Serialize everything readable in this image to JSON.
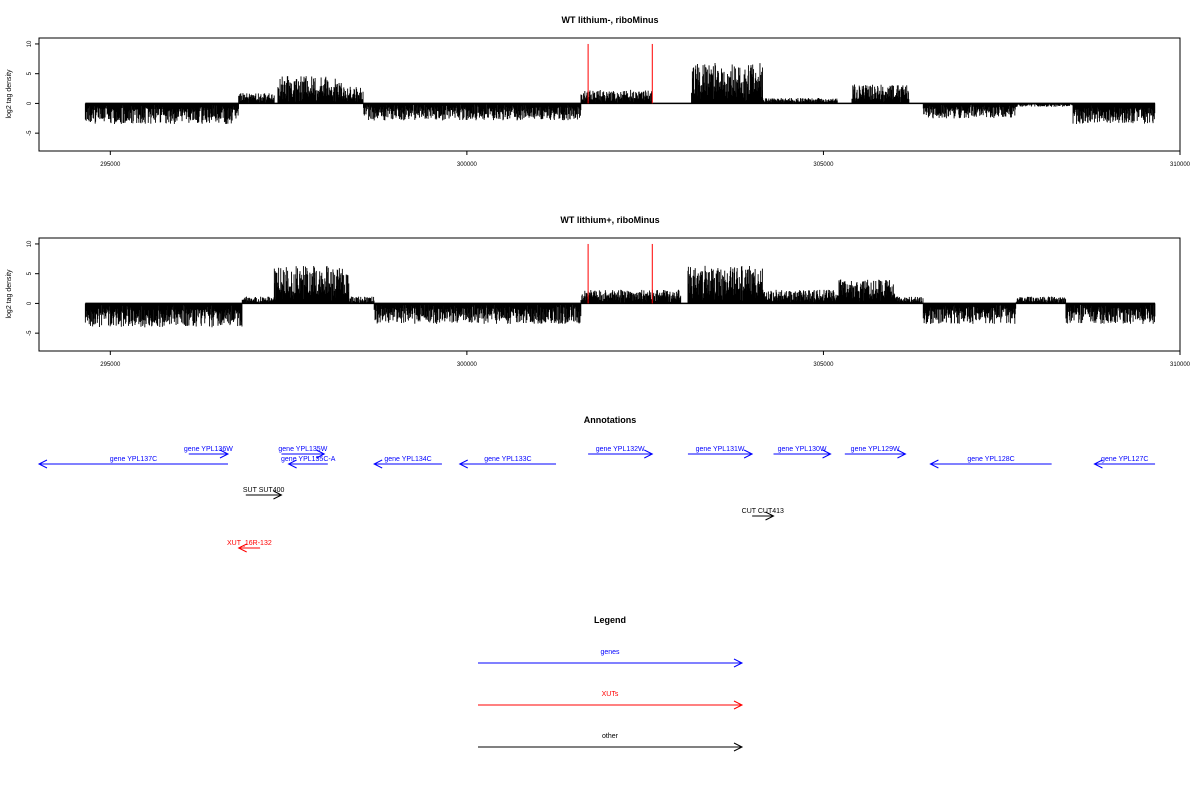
{
  "chart_data": [
    {
      "type": "bar",
      "title": "WT lithium-, riboMinus",
      "ylabel": "log2 tag density",
      "xlim": [
        294000,
        310000
      ],
      "ylim": [
        -8,
        11
      ],
      "x_ticks": [
        295000,
        300000,
        305000,
        310000
      ],
      "y_ticks": [
        -5,
        0,
        5,
        10
      ],
      "bins": [
        {
          "from": 294650,
          "to": 296800,
          "value": -3.0
        },
        {
          "from": 296800,
          "to": 297300,
          "value": 1.5
        },
        {
          "from": 297350,
          "to": 298250,
          "value": 4.0
        },
        {
          "from": 298250,
          "to": 298550,
          "value": 2.5
        },
        {
          "from": 298550,
          "to": 301600,
          "value": -2.5
        },
        {
          "from": 301600,
          "to": 302600,
          "value": 2.0
        },
        {
          "from": 303150,
          "to": 304150,
          "value": 6.0
        },
        {
          "from": 304150,
          "to": 305200,
          "value": 0.8
        },
        {
          "from": 305400,
          "to": 306200,
          "value": 2.8
        },
        {
          "from": 306400,
          "to": 307700,
          "value": -2.2
        },
        {
          "from": 307700,
          "to": 308500,
          "value": -0.5
        },
        {
          "from": 308500,
          "to": 309650,
          "value": -3.0
        }
      ],
      "highlight_lines": {
        "color": "#ff0000",
        "x": [
          301700,
          302600
        ]
      }
    },
    {
      "type": "bar",
      "title": "WT lithium+, riboMinus",
      "ylabel": "log2 tag density",
      "xlim": [
        294000,
        310000
      ],
      "ylim": [
        -8,
        11
      ],
      "x_ticks": [
        295000,
        300000,
        305000,
        310000
      ],
      "y_ticks": [
        -5,
        0,
        5,
        10
      ],
      "bins": [
        {
          "from": 294650,
          "to": 296850,
          "value": -3.5
        },
        {
          "from": 296850,
          "to": 297300,
          "value": 1.0
        },
        {
          "from": 297300,
          "to": 298350,
          "value": 5.5
        },
        {
          "from": 298350,
          "to": 298700,
          "value": 1.0
        },
        {
          "from": 298700,
          "to": 301600,
          "value": -3.0
        },
        {
          "from": 301600,
          "to": 303000,
          "value": 2.0
        },
        {
          "from": 303100,
          "to": 304150,
          "value": 5.5
        },
        {
          "from": 304150,
          "to": 305200,
          "value": 2.0
        },
        {
          "from": 305200,
          "to": 306000,
          "value": 3.5
        },
        {
          "from": 306000,
          "to": 306400,
          "value": 1.0
        },
        {
          "from": 306400,
          "to": 307700,
          "value": -3.0
        },
        {
          "from": 307700,
          "to": 308400,
          "value": 1.0
        },
        {
          "from": 308400,
          "to": 309650,
          "value": -3.0
        }
      ],
      "highlight_lines": {
        "color": "#ff0000",
        "x": [
          301700,
          302600
        ]
      }
    }
  ],
  "annotations": {
    "title": "Annotations",
    "features": [
      {
        "label": "gene YPL137C",
        "color": "#0000ff",
        "dir": "left",
        "row": 2,
        "from": 294000,
        "to": 296650
      },
      {
        "label": "gene YPL136W",
        "color": "#0000ff",
        "dir": "right",
        "row": 1,
        "from": 296100,
        "to": 296650
      },
      {
        "label": "gene YPL135W",
        "color": "#0000ff",
        "dir": "right",
        "row": 1,
        "from": 297400,
        "to": 298000
      },
      {
        "label": "gene YPL135C-A",
        "color": "#0000ff",
        "dir": "left",
        "row": 2,
        "from": 297500,
        "to": 298050
      },
      {
        "label": "gene YPL134C",
        "color": "#0000ff",
        "dir": "left",
        "row": 2,
        "from": 298700,
        "to": 299650
      },
      {
        "label": "gene YPL133C",
        "color": "#0000ff",
        "dir": "left",
        "row": 2,
        "from": 299900,
        "to": 301250
      },
      {
        "label": "gene YPL132W",
        "color": "#0000ff",
        "dir": "right",
        "row": 1,
        "from": 301700,
        "to": 302600
      },
      {
        "label": "gene YPL131W",
        "color": "#0000ff",
        "dir": "right",
        "row": 1,
        "from": 303100,
        "to": 304000
      },
      {
        "label": "gene YPL130W",
        "color": "#0000ff",
        "dir": "right",
        "row": 1,
        "from": 304300,
        "to": 305100
      },
      {
        "label": "gene YPL129W",
        "color": "#0000ff",
        "dir": "right",
        "row": 1,
        "from": 305300,
        "to": 306150
      },
      {
        "label": "gene YPL128C",
        "color": "#0000ff",
        "dir": "left",
        "row": 2,
        "from": 306500,
        "to": 308200
      },
      {
        "label": "gene YPL127C",
        "color": "#0000ff",
        "dir": "left",
        "row": 2,
        "from": 308800,
        "to": 309650
      },
      {
        "label": "SUT SUT400",
        "color": "#000000",
        "dir": "right",
        "row": 3,
        "from": 296900,
        "to": 297400
      },
      {
        "label": "CUT CUT413",
        "color": "#000000",
        "dir": "right",
        "row": 4,
        "from": 304000,
        "to": 304300
      },
      {
        "label": "XUT_16R-132",
        "color": "#ff0000",
        "dir": "left",
        "row": 5,
        "from": 296800,
        "to": 297100
      }
    ]
  },
  "legend": {
    "title": "Legend",
    "items": [
      {
        "label": "genes",
        "color": "#0000ff"
      },
      {
        "label": "XUTs",
        "color": "#ff0000"
      },
      {
        "label": "other",
        "color": "#000000"
      }
    ]
  }
}
